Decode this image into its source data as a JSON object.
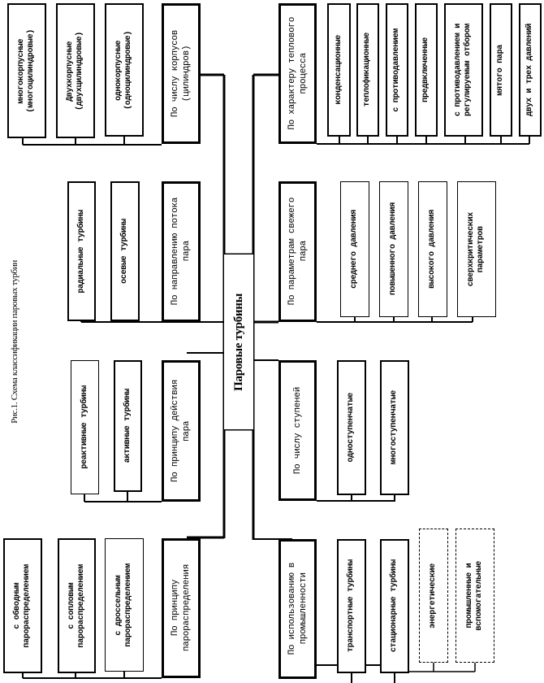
{
  "caption": "Рис.1. Схема классификации паровых турбин",
  "center": "Паровые турбины",
  "left_groups": [
    {
      "header": "По числу корпусов\n(цилиндров)",
      "items": [
        "многокорпусные\n(многоцилиндровые)",
        "Двухкорпусные\n(двухцилиндровые)",
        "однокорпусные\n(одноцилиндровые)"
      ]
    },
    {
      "header": "По направлению потока\nпара",
      "items": [
        "радиальные турбины",
        "осевые турбины"
      ]
    },
    {
      "header": "По принципу действия\nпара",
      "items": [
        "реактивные турбины",
        "активные турбины"
      ]
    },
    {
      "header": "По принципу\nпарораспределения",
      "items": [
        "с обводным\nпарораспределением",
        "с сопловым\nпарораспределением",
        "с дроссельным\nпарораспределением"
      ]
    }
  ],
  "right_groups": [
    {
      "header": "По характеру теплового\nпроцесса",
      "items": [
        "конденсационные",
        "теплофикационные",
        "с противодавлением",
        "предвключенные",
        "с противодавлением и\nрегулируемым отбором",
        "мятого пара",
        "двух и трех давлений"
      ]
    },
    {
      "header": "По параметрам свежего\nпара",
      "items": [
        "среднего давления",
        "повышенного давления",
        "высокого давления",
        "сверхкритических\nпараметров"
      ]
    },
    {
      "header": "По числу ступеней",
      "items": [
        "одноступенчатые",
        "многоступенчатые"
      ]
    },
    {
      "header": "По использованию в\nпромышленности",
      "items": [
        "транспортные турбины",
        "стационарные турбины"
      ],
      "sub_items": [
        "энергетические",
        "промышленные и\nвспомогательные"
      ]
    }
  ]
}
